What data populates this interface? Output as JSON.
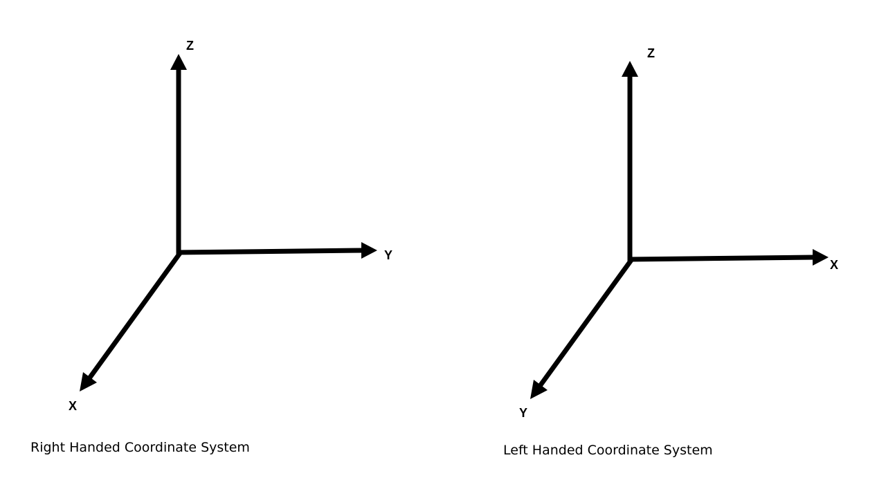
{
  "left_system": {
    "caption": "Right Handed Coordinate System",
    "axes": {
      "up": "Z",
      "right": "Y",
      "down_left": "X"
    }
  },
  "right_system": {
    "caption": "Left Handed Coordinate System",
    "axes": {
      "up": "Z",
      "right": "X",
      "down_left": "Y"
    }
  },
  "colors": {
    "stroke": "#000000",
    "background": "#ffffff"
  }
}
